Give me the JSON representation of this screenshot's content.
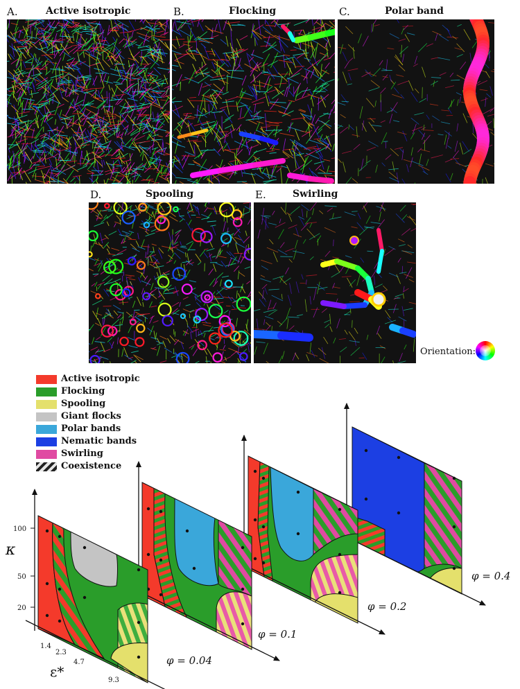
{
  "panels": [
    {
      "letter": "A.",
      "title": "Active isotropic"
    },
    {
      "letter": "B.",
      "title": "Flocking"
    },
    {
      "letter": "C.",
      "title": "Polar band"
    },
    {
      "letter": "D.",
      "title": "Spooling"
    },
    {
      "letter": "E.",
      "title": "Swirling"
    }
  ],
  "orientation_label": "Orientation:",
  "legend": [
    {
      "label": "Active isotropic",
      "color": "#f43a2b"
    },
    {
      "label": "Flocking",
      "color": "#2a9d2a"
    },
    {
      "label": "Spooling",
      "color": "#e4e06c"
    },
    {
      "label": "Giant flocks",
      "color": "#c4c4c4"
    },
    {
      "label": "Polar bands",
      "color": "#3aa7da"
    },
    {
      "label": "Nematic bands",
      "color": "#1c3fe3"
    },
    {
      "label": "Swirling",
      "color": "#e04aa2"
    },
    {
      "label": "Coexistence",
      "color": "#333333"
    }
  ],
  "axes": {
    "kappa_symbol": "κ",
    "kappa_ticks": [
      "100",
      "50",
      "20"
    ],
    "eps_symbol": "ε*",
    "eps_ticks": [
      "1.4",
      "2.3",
      "4.7",
      "9.3"
    ]
  },
  "phi_labels": [
    "φ = 0.04",
    "φ = 0.1",
    "φ = 0.2",
    "φ = 0.4"
  ]
}
